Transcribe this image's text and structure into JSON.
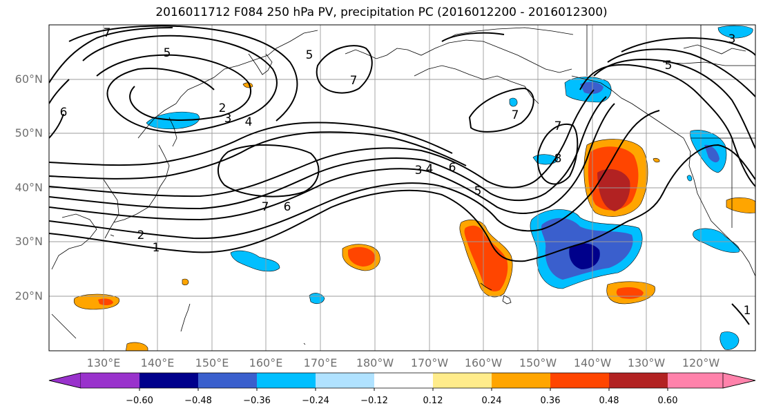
{
  "title": "2016011712 F084 250 hPa PV, precipitation PC (2016012200 - 2016012300)",
  "lat_labels": [
    "60°N",
    "50°N",
    "40°N",
    "30°N",
    "20°N"
  ],
  "lon_labels": [
    "130°E",
    "140°E",
    "150°E",
    "160°E",
    "170°E",
    "180°W",
    "170°W",
    "160°W",
    "150°W",
    "140°W",
    "130°W",
    "120°W"
  ],
  "contour_labels": [
    "7",
    "5",
    "6",
    "2",
    "3",
    "4",
    "5",
    "7",
    "7",
    "3",
    "4",
    "6",
    "5",
    "7",
    "6",
    "2",
    "1",
    "7",
    "8",
    "5",
    "3",
    "1"
  ],
  "colorbar": {
    "labels": [
      "−0.60",
      "−0.48",
      "−0.36",
      "−0.24",
      "−0.12",
      "0.12",
      "0.24",
      "0.36",
      "0.48",
      "0.60"
    ],
    "colors": [
      "#9932cc",
      "#00008b",
      "#3a5fcd",
      "#00bfff",
      "#b0e2ff",
      "#ffffff",
      "#ffec8b",
      "#ffa500",
      "#ff4500",
      "#b22222",
      "#ff82ab"
    ]
  }
}
